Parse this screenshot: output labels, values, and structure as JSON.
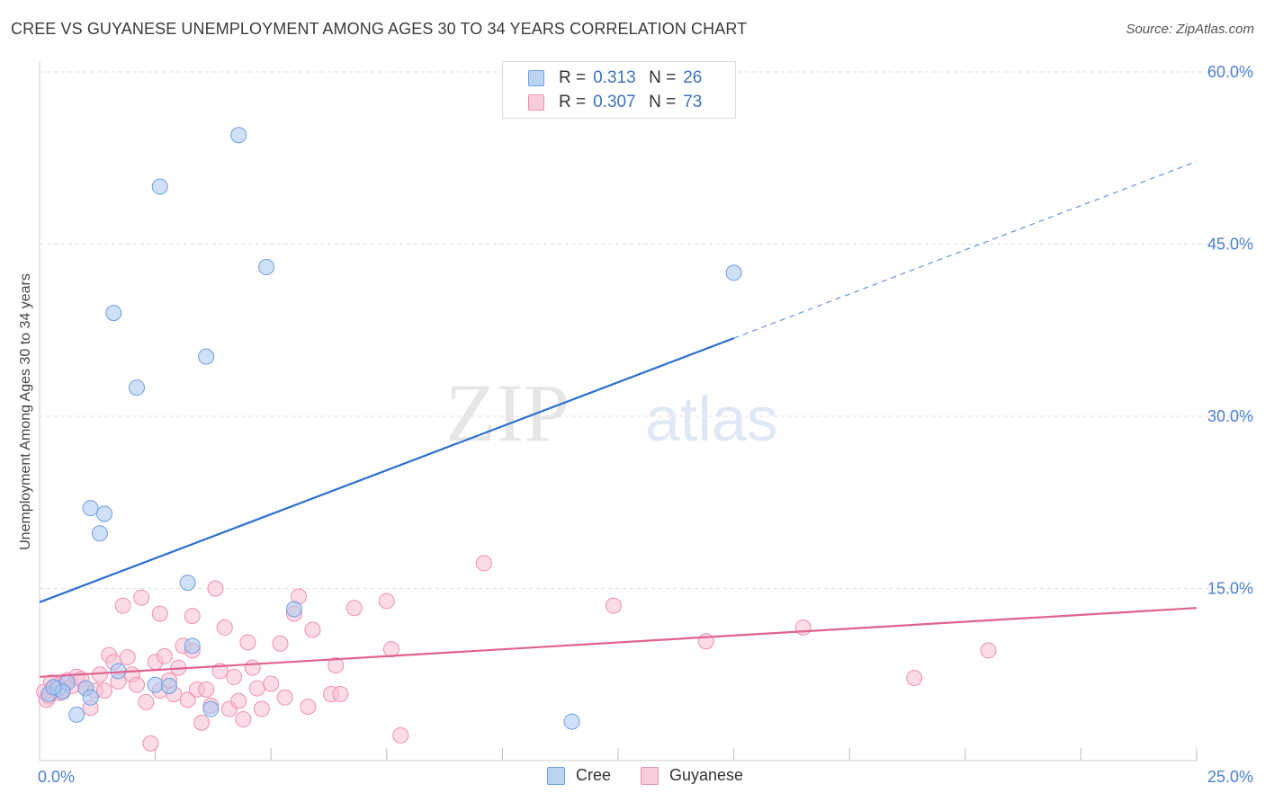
{
  "header": {
    "title": "CREE VS GUYANESE UNEMPLOYMENT AMONG AGES 30 TO 34 YEARS CORRELATION CHART",
    "source": "Source: ZipAtlas.com"
  },
  "watermark": {
    "zip": "ZIP",
    "atlas": "atlas"
  },
  "legend": {
    "cree": {
      "r_label": "R =",
      "r_value": "0.313",
      "n_label": "N =",
      "n_value": "26"
    },
    "guyanese": {
      "r_label": "R =",
      "r_value": "0.307",
      "n_label": "N =",
      "n_value": "73"
    }
  },
  "colors": {
    "cree_fill": "#a9c8f0",
    "cree_stroke": "#6f9ee0",
    "cree_line": "#2d6fd0",
    "guyanese_fill": "#f7bfd1",
    "guyanese_stroke": "#ee8fb0",
    "guyanese_line": "#e0628f",
    "axis_label": "#4a7fd0",
    "grid": "#dddddd"
  },
  "chart_data": {
    "type": "scatter",
    "title": "CREE VS GUYANESE UNEMPLOYMENT AMONG AGES 30 TO 34 YEARS CORRELATION CHART",
    "xlabel": "",
    "ylabel": "Unemployment Among Ages 30 to 34 years",
    "xlim": [
      0,
      25
    ],
    "ylim": [
      0,
      60
    ],
    "x_tick_labels": [
      {
        "value": 0,
        "label": "0.0%"
      },
      {
        "value": 25,
        "label": "25.0%"
      }
    ],
    "y_tick_labels": [
      {
        "value": 15,
        "label": "15.0%"
      },
      {
        "value": 30,
        "label": "30.0%"
      },
      {
        "value": 45,
        "label": "45.0%"
      },
      {
        "value": 60,
        "label": "60.0%"
      }
    ],
    "x_minor_ticks": [
      2.5,
      5,
      7.5,
      10,
      12.5,
      15,
      17.5,
      20,
      22.5
    ],
    "grid": true,
    "legend_position": "top-center",
    "series": [
      {
        "name": "Cree",
        "r": 0.313,
        "n": 26,
        "trendline": {
          "x0": 0,
          "y0": 13.8,
          "x1": 15.0,
          "y1": 36.8,
          "dashed_to_x": 25.0,
          "dashed_to_y": 52.2
        },
        "points": [
          [
            0.2,
            5.8
          ],
          [
            0.4,
            6.3
          ],
          [
            0.6,
            6.8
          ],
          [
            0.8,
            4.0
          ],
          [
            1.0,
            6.3
          ],
          [
            1.1,
            5.5
          ],
          [
            1.6,
            39.0
          ],
          [
            1.7,
            7.8
          ],
          [
            2.1,
            32.5
          ],
          [
            2.6,
            50.0
          ],
          [
            3.2,
            15.5
          ],
          [
            3.3,
            10.0
          ],
          [
            2.5,
            6.6
          ],
          [
            3.6,
            35.2
          ],
          [
            3.7,
            4.5
          ],
          [
            4.3,
            54.5
          ],
          [
            4.9,
            43.0
          ],
          [
            5.5,
            13.2
          ],
          [
            1.1,
            22.0
          ],
          [
            1.3,
            19.8
          ],
          [
            1.4,
            21.5
          ],
          [
            2.8,
            6.5
          ],
          [
            11.5,
            3.4
          ],
          [
            15.0,
            42.5
          ],
          [
            0.5,
            6.0
          ],
          [
            0.3,
            6.4
          ]
        ]
      },
      {
        "name": "Guyanese",
        "r": 0.307,
        "n": 73,
        "trendline": {
          "x0": 0,
          "y0": 7.3,
          "x1": 25.0,
          "y1": 13.3
        },
        "points": [
          [
            0.1,
            6.0
          ],
          [
            0.2,
            5.6
          ],
          [
            0.3,
            6.3
          ],
          [
            0.4,
            6.6
          ],
          [
            0.5,
            6.1
          ],
          [
            0.6,
            7.0
          ],
          [
            0.7,
            6.5
          ],
          [
            0.8,
            7.3
          ],
          [
            0.9,
            7.1
          ],
          [
            1.0,
            6.3
          ],
          [
            1.1,
            4.6
          ],
          [
            1.2,
            6.1
          ],
          [
            1.3,
            7.5
          ],
          [
            1.5,
            9.2
          ],
          [
            1.6,
            8.6
          ],
          [
            1.7,
            6.9
          ],
          [
            1.8,
            13.5
          ],
          [
            1.9,
            9.0
          ],
          [
            2.0,
            7.5
          ],
          [
            2.1,
            6.6
          ],
          [
            2.2,
            14.2
          ],
          [
            2.3,
            5.1
          ],
          [
            2.4,
            1.5
          ],
          [
            2.5,
            8.6
          ],
          [
            2.6,
            6.1
          ],
          [
            2.6,
            12.8
          ],
          [
            2.7,
            9.1
          ],
          [
            2.8,
            7.0
          ],
          [
            2.9,
            5.8
          ],
          [
            3.0,
            8.1
          ],
          [
            3.1,
            10.0
          ],
          [
            3.2,
            5.3
          ],
          [
            3.3,
            9.6
          ],
          [
            3.3,
            12.6
          ],
          [
            3.4,
            6.2
          ],
          [
            3.5,
            3.3
          ],
          [
            3.6,
            6.2
          ],
          [
            3.7,
            4.8
          ],
          [
            3.9,
            7.8
          ],
          [
            4.0,
            11.6
          ],
          [
            4.1,
            4.5
          ],
          [
            4.2,
            7.3
          ],
          [
            4.3,
            5.2
          ],
          [
            4.4,
            3.6
          ],
          [
            4.5,
            10.3
          ],
          [
            4.6,
            8.1
          ],
          [
            4.7,
            6.3
          ],
          [
            4.8,
            4.5
          ],
          [
            5.0,
            6.7
          ],
          [
            5.2,
            10.2
          ],
          [
            5.3,
            5.5
          ],
          [
            5.5,
            12.8
          ],
          [
            5.6,
            14.3
          ],
          [
            5.8,
            4.7
          ],
          [
            5.9,
            11.4
          ],
          [
            6.3,
            5.8
          ],
          [
            6.4,
            8.3
          ],
          [
            6.5,
            5.8
          ],
          [
            6.8,
            13.3
          ],
          [
            7.5,
            13.9
          ],
          [
            7.6,
            9.7
          ],
          [
            7.8,
            2.2
          ],
          [
            9.6,
            17.2
          ],
          [
            12.4,
            13.5
          ],
          [
            14.4,
            10.4
          ],
          [
            16.5,
            11.6
          ],
          [
            18.9,
            7.2
          ],
          [
            20.5,
            9.6
          ],
          [
            0.15,
            5.3
          ],
          [
            0.25,
            6.8
          ],
          [
            0.45,
            5.9
          ],
          [
            1.4,
            6.1
          ],
          [
            3.8,
            15.0
          ]
        ]
      }
    ]
  }
}
